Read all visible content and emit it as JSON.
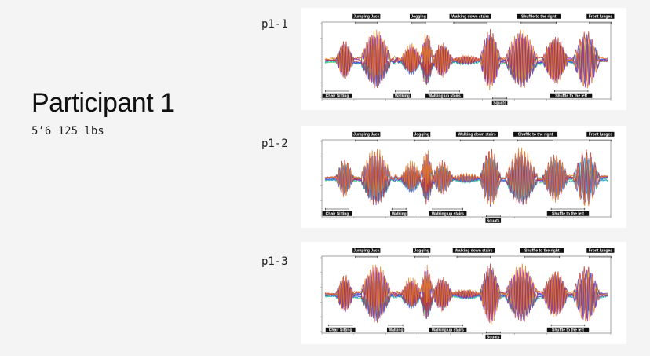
{
  "participant": {
    "title": "Participant 1",
    "stats": "5’6 125 lbs"
  },
  "colors": {
    "background": "#f4f4f4",
    "panel": "#ffffff",
    "label_bg": "#111111",
    "series_gradient": [
      "#2ecc71",
      "#1abc9c",
      "#3498db",
      "#5b4bd6",
      "#8e2bb8",
      "#c0392b",
      "#e67e22"
    ]
  },
  "chart_data": [
    {
      "type": "line",
      "run": "p1-1",
      "series_count": 8,
      "grid": false,
      "annotations_above": [
        "Jumping Jack",
        "Jogging",
        "Walking down stairs",
        "Shuffle to the right",
        "Front lunges"
      ],
      "annotations_below": [
        "Chair Sitting",
        "Walking",
        "Walking up stairs",
        "Squats",
        "Shuffle to the left"
      ]
    },
    {
      "type": "line",
      "run": "p1-2",
      "series_count": 8,
      "grid": false,
      "annotations_above": [
        "Jumping Jack",
        "Jogging",
        "Walking down stairs",
        "Shuffle to the right",
        "Front lunges"
      ],
      "annotations_below": [
        "Chair Sitting",
        "Walking",
        "Walking up stairs",
        "Squats",
        "Shuffle to the left"
      ]
    },
    {
      "type": "line",
      "run": "p1-3",
      "series_count": 8,
      "grid": false,
      "annotations_above": [
        "Jumping Jack",
        "Jogging",
        "Walking down stairs",
        "Shuffle to the right",
        "Front lunges"
      ],
      "annotations_below": [
        "Chair Sitting",
        "Walking",
        "Walking up stairs",
        "Squats",
        "Shuffle to the left"
      ]
    }
  ]
}
